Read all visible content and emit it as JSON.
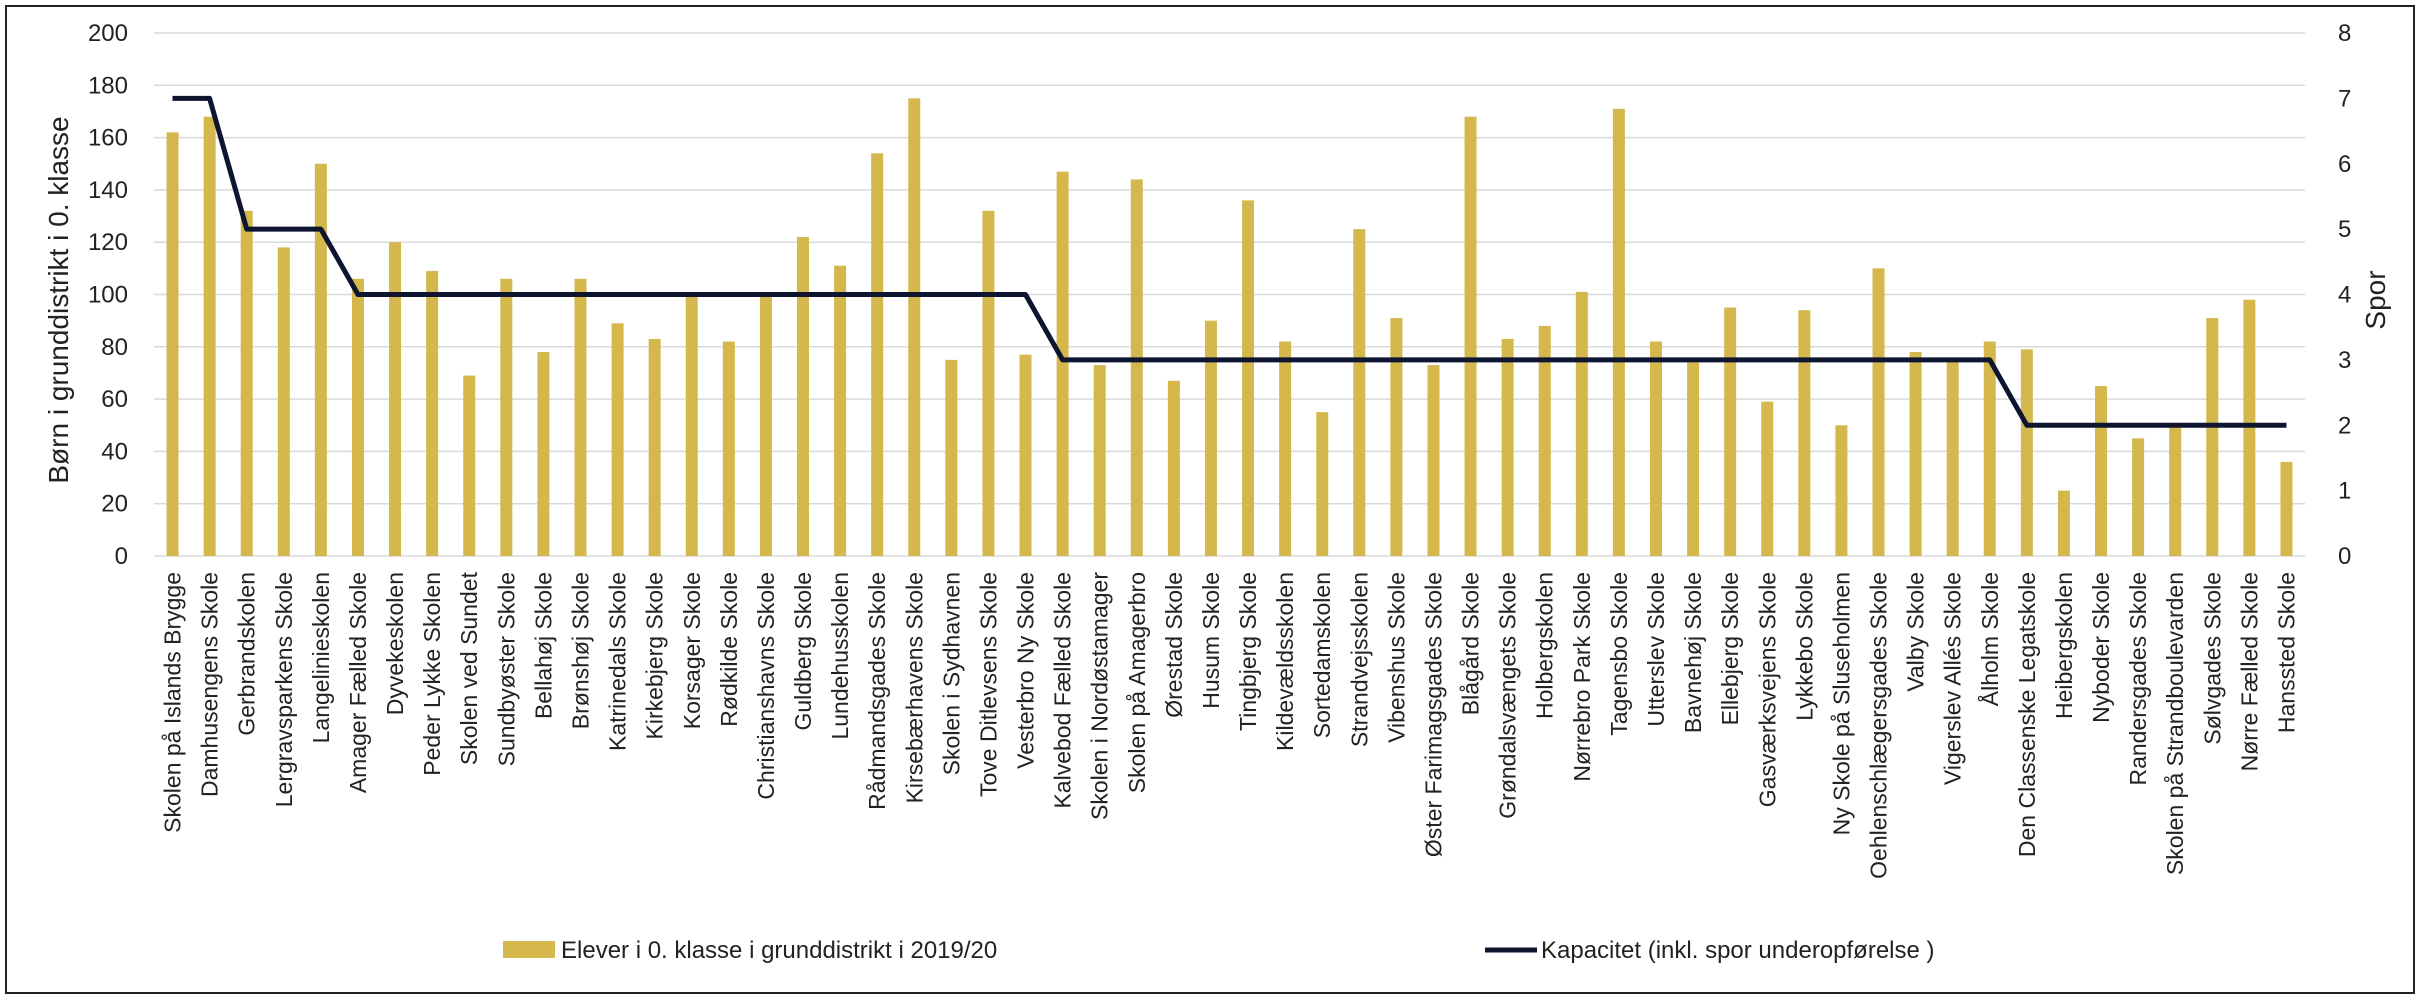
{
  "chart_data": {
    "type": "bar",
    "categories": [
      "Skolen på Islands Brygge",
      "Damhusengens Skole",
      "Gerbrandskolen",
      "Lergravsparkens Skole",
      "Langelinieskolen",
      "Amager Fælled Skole",
      "Dyvekeskolen",
      "Peder Lykke Skolen",
      "Skolen ved Sundet",
      "Sundbyøster Skole",
      "Bellahøj Skole",
      "Brønshøj Skole",
      "Katrinedals Skole",
      "Kirkebjerg Skole",
      "Korsager Skole",
      "Rødkilde Skole",
      "Christianshavns Skole",
      "Guldberg Skole",
      "Lundehusskolen",
      "Rådmandsgades Skole",
      "Kirsebærhavens Skole",
      "Skolen i Sydhavnen",
      "Tove Ditlevsens Skole",
      "Vesterbro Ny Skole",
      "Kalvebod Fælled Skole",
      "Skolen i Nordøstamager",
      "Skolen på Amagerbro",
      "Ørestad Skole",
      "Husum Skole",
      "Tingbjerg Skole",
      "Kildevældsskolen",
      "Sortedamskolen",
      "Strandvejsskolen",
      "Vibenshus Skole",
      "Øster Farimagsgades Skole",
      "Blågård Skole",
      "Grøndalsvængets Skole",
      "Holbergskolen",
      "Nørrebro Park Skole",
      "Tagensbo Skole",
      "Utterslev Skole",
      "Bavnehøj Skole",
      "Ellebjerg Skole",
      "Gasværksvejens Skole",
      "Lykkebo Skole",
      "Ny Skole på Sluseholmen",
      "Oehlenschlægersgades Skole",
      "Valby Skole",
      "Vigerslev Allés Skole",
      "Ålholm Skole",
      "Den Classenske Legatskole",
      "Heibergskolen",
      "Nyboder Skole",
      "Randersgades Skole",
      "Skolen på Strandboulevarden",
      "Sølvgades Skole",
      "Nørre Fælled Skole",
      "Hanssted Skole"
    ],
    "series": [
      {
        "name": "Elever i 0. klasse i grunddistrikt i 2019/20",
        "axis": "left",
        "kind": "bar",
        "color": "#d4b84e",
        "values": [
          162,
          168,
          132,
          118,
          150,
          106,
          120,
          109,
          69,
          106,
          78,
          106,
          89,
          83,
          100,
          82,
          100,
          122,
          111,
          154,
          175,
          75,
          132,
          77,
          147,
          73,
          144,
          67,
          90,
          136,
          82,
          55,
          125,
          91,
          73,
          168,
          83,
          88,
          101,
          171,
          82,
          74,
          95,
          59,
          94,
          50,
          110,
          78,
          75,
          82,
          79,
          25,
          65,
          45,
          50,
          91,
          98,
          36
        ]
      },
      {
        "name": "Kapacitet (inkl. spor underopførelse )",
        "axis": "right",
        "kind": "line",
        "color": "#0d1530",
        "values": [
          7,
          7,
          5,
          5,
          5,
          4,
          4,
          4,
          4,
          4,
          4,
          4,
          4,
          4,
          4,
          4,
          4,
          4,
          4,
          4,
          4,
          4,
          4,
          4,
          3,
          3,
          3,
          3,
          3,
          3,
          3,
          3,
          3,
          3,
          3,
          3,
          3,
          3,
          3,
          3,
          3,
          3,
          3,
          3,
          3,
          3,
          3,
          3,
          3,
          3,
          2,
          2,
          2,
          2,
          2,
          2,
          2,
          2
        ]
      }
    ],
    "ylabel": "Børn i grunddistrikt i 0. klasse",
    "y2label": "Spor",
    "ylim": [
      0,
      200
    ],
    "y2lim": [
      0,
      8
    ],
    "yticks": [
      "0",
      "20",
      "40",
      "60",
      "80",
      "100",
      "120",
      "140",
      "160",
      "180",
      "200"
    ],
    "y2ticks": [
      "0",
      "1",
      "2",
      "3",
      "4",
      "5",
      "6",
      "7",
      "8"
    ],
    "grid": true,
    "legend_position": "bottom"
  }
}
